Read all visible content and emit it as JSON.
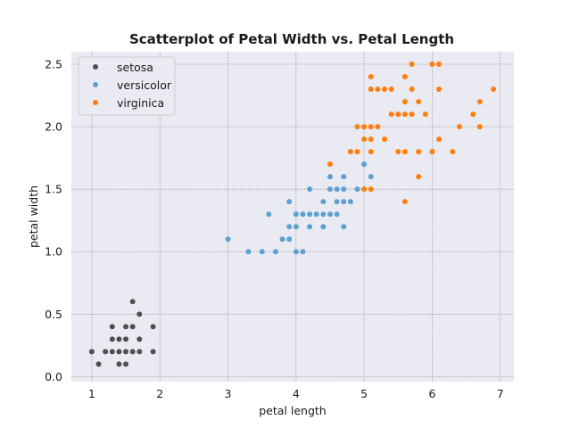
{
  "chart_data": {
    "type": "scatter",
    "title": "Scatterplot of Petal Width vs. Petal Length",
    "xlabel": "petal length",
    "ylabel": "petal width",
    "xlim": [
      0.7,
      7.2
    ],
    "ylim": [
      -0.04,
      2.6
    ],
    "xticks": [
      1,
      2,
      3,
      4,
      5,
      6,
      7
    ],
    "xtick_labels": [
      "1",
      "2",
      "3",
      "4",
      "5",
      "6",
      "7"
    ],
    "yticks": [
      0.0,
      0.5,
      1.0,
      1.5,
      2.0,
      2.5
    ],
    "ytick_labels": [
      "0.0",
      "0.5",
      "1.0",
      "1.5",
      "2.0",
      "2.5"
    ],
    "grid": true,
    "legend_position": "top-left",
    "colors": {
      "background": "#eaeaf2",
      "grid": "#9a9a9a",
      "setosa": "#4f4f4f",
      "versicolor": "#5ea1d1",
      "virginica": "#ff7f0e"
    },
    "series": [
      {
        "name": "setosa",
        "color": "#4f4f4f",
        "points": [
          [
            1.0,
            0.2
          ],
          [
            1.1,
            0.1
          ],
          [
            1.2,
            0.2
          ],
          [
            1.3,
            0.2
          ],
          [
            1.3,
            0.3
          ],
          [
            1.3,
            0.4
          ],
          [
            1.4,
            0.1
          ],
          [
            1.4,
            0.2
          ],
          [
            1.4,
            0.3
          ],
          [
            1.5,
            0.1
          ],
          [
            1.5,
            0.2
          ],
          [
            1.5,
            0.3
          ],
          [
            1.5,
            0.4
          ],
          [
            1.6,
            0.2
          ],
          [
            1.6,
            0.4
          ],
          [
            1.6,
            0.6
          ],
          [
            1.7,
            0.2
          ],
          [
            1.7,
            0.3
          ],
          [
            1.7,
            0.5
          ],
          [
            1.9,
            0.2
          ],
          [
            1.9,
            0.4
          ]
        ]
      },
      {
        "name": "versicolor",
        "color": "#5ea1d1",
        "points": [
          [
            3.0,
            1.1
          ],
          [
            3.3,
            1.0
          ],
          [
            3.5,
            1.0
          ],
          [
            3.6,
            1.3
          ],
          [
            3.7,
            1.0
          ],
          [
            3.8,
            1.1
          ],
          [
            3.9,
            1.1
          ],
          [
            3.9,
            1.2
          ],
          [
            3.9,
            1.4
          ],
          [
            4.0,
            1.0
          ],
          [
            4.0,
            1.2
          ],
          [
            4.0,
            1.3
          ],
          [
            4.1,
            1.0
          ],
          [
            4.1,
            1.3
          ],
          [
            4.2,
            1.2
          ],
          [
            4.2,
            1.3
          ],
          [
            4.2,
            1.5
          ],
          [
            4.3,
            1.3
          ],
          [
            4.4,
            1.2
          ],
          [
            4.4,
            1.3
          ],
          [
            4.4,
            1.4
          ],
          [
            4.5,
            1.3
          ],
          [
            4.5,
            1.5
          ],
          [
            4.5,
            1.6
          ],
          [
            4.6,
            1.3
          ],
          [
            4.6,
            1.4
          ],
          [
            4.6,
            1.5
          ],
          [
            4.7,
            1.2
          ],
          [
            4.7,
            1.4
          ],
          [
            4.7,
            1.5
          ],
          [
            4.7,
            1.6
          ],
          [
            4.8,
            1.4
          ],
          [
            4.8,
            1.8
          ],
          [
            4.9,
            1.5
          ],
          [
            5.0,
            1.7
          ],
          [
            5.1,
            1.6
          ]
        ]
      },
      {
        "name": "virginica",
        "color": "#ff7f0e",
        "points": [
          [
            4.5,
            1.7
          ],
          [
            4.8,
            1.8
          ],
          [
            4.9,
            1.8
          ],
          [
            4.9,
            2.0
          ],
          [
            5.0,
            1.5
          ],
          [
            5.0,
            1.9
          ],
          [
            5.0,
            2.0
          ],
          [
            5.1,
            1.5
          ],
          [
            5.1,
            1.8
          ],
          [
            5.1,
            1.9
          ],
          [
            5.1,
            2.0
          ],
          [
            5.1,
            2.3
          ],
          [
            5.1,
            2.4
          ],
          [
            5.2,
            2.0
          ],
          [
            5.2,
            2.3
          ],
          [
            5.3,
            1.9
          ],
          [
            5.3,
            2.3
          ],
          [
            5.4,
            2.1
          ],
          [
            5.4,
            2.3
          ],
          [
            5.5,
            1.8
          ],
          [
            5.5,
            2.1
          ],
          [
            5.6,
            1.4
          ],
          [
            5.6,
            1.8
          ],
          [
            5.6,
            2.1
          ],
          [
            5.6,
            2.2
          ],
          [
            5.6,
            2.4
          ],
          [
            5.7,
            2.1
          ],
          [
            5.7,
            2.3
          ],
          [
            5.7,
            2.5
          ],
          [
            5.8,
            1.6
          ],
          [
            5.8,
            1.8
          ],
          [
            5.8,
            2.2
          ],
          [
            5.9,
            2.1
          ],
          [
            6.0,
            1.8
          ],
          [
            6.0,
            2.5
          ],
          [
            6.1,
            1.9
          ],
          [
            6.1,
            2.3
          ],
          [
            6.1,
            2.5
          ],
          [
            6.3,
            1.8
          ],
          [
            6.4,
            2.0
          ],
          [
            6.6,
            2.1
          ],
          [
            6.7,
            2.0
          ],
          [
            6.7,
            2.2
          ],
          [
            6.9,
            2.3
          ]
        ]
      }
    ]
  }
}
